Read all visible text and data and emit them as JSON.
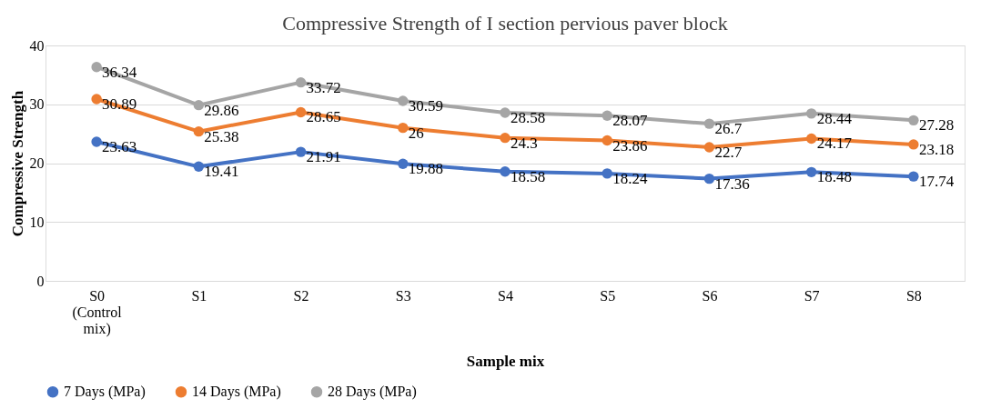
{
  "chart_data": {
    "type": "line",
    "title": "Compressive Strength of I section pervious paver block",
    "xlabel": "Sample mix",
    "ylabel": "Compressive Strength",
    "categories": [
      "S0 (Control mix)",
      "S1",
      "S2",
      "S3",
      "S4",
      "S5",
      "S6",
      "S7",
      "S8"
    ],
    "series": [
      {
        "name": "7 Days (MPa)",
        "color": "#4472c4",
        "values": [
          23.63,
          19.41,
          21.91,
          19.88,
          18.58,
          18.24,
          17.36,
          18.48,
          17.74
        ]
      },
      {
        "name": "14 Days (MPa)",
        "color": "#ed7d31",
        "values": [
          30.89,
          25.38,
          28.65,
          26,
          24.3,
          23.86,
          22.7,
          24.17,
          23.18
        ]
      },
      {
        "name": "28 Days (MPa)",
        "color": "#a5a5a5",
        "values": [
          36.34,
          29.86,
          33.72,
          30.59,
          28.58,
          28.07,
          26.7,
          28.44,
          27.28
        ]
      }
    ],
    "ylim": [
      0,
      40
    ],
    "yticks": [
      0,
      10,
      20,
      30,
      40
    ],
    "grid": "y",
    "legend": "bottom",
    "marker": "circle",
    "line_style": "solid",
    "data_labels": true
  }
}
